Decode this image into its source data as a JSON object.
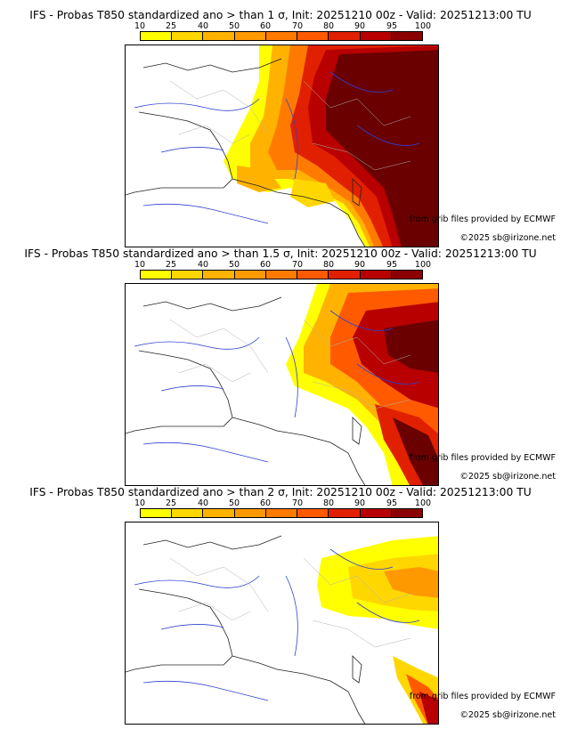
{
  "colorbar": {
    "ticks": [
      "10",
      "25",
      "40",
      "50",
      "60",
      "70",
      "80",
      "90",
      "95",
      "100"
    ],
    "colors": [
      "#ffff00",
      "#ffd700",
      "#ffb300",
      "#ff9900",
      "#ff7a00",
      "#ff5a00",
      "#e02000",
      "#b80000",
      "#8b0000",
      "#600000"
    ]
  },
  "panels": [
    {
      "title": "IFS - Probas T850  standardized ano > than 1 σ, Init: 20251210 00z - Valid: 20251213:00 TU",
      "credit_source": "from grib files provided by ECMWF",
      "credit_copyright": "©2025 sb@irizone.net"
    },
    {
      "title": "IFS - Probas T850  standardized ano > than 1.5 σ, Init: 20251210 00z - Valid: 20251213:00 TU",
      "credit_source": "from grib files provided by ECMWF",
      "credit_copyright": "©2025 sb@irizone.net"
    },
    {
      "title": "IFS - Probas T850  standardized ano > than 2 σ, Init: 20251210 00z - Valid: 20251213:00 TU",
      "credit_source": "from grib files provided by ECMWF",
      "credit_copyright": "©2025 sb@irizone.net"
    }
  ]
}
